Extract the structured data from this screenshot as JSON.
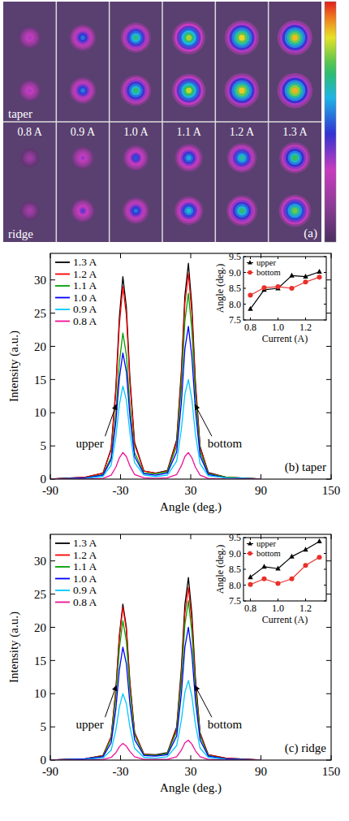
{
  "chart_data": [
    {
      "type": "image_grid",
      "columns": [
        "0.8 A",
        "0.9 A",
        "1.0 A",
        "1.1 A",
        "1.2 A",
        "1.3 A"
      ],
      "panel_label": "(a)",
      "colorbar_range": [
        0,
        1
      ],
      "series": [
        {
          "name": "taper",
          "upper": [
            0.33,
            0.52,
            0.68,
            0.8,
            0.86,
            0.88
          ],
          "bottom": [
            0.33,
            0.53,
            0.7,
            0.82,
            0.87,
            0.89
          ]
        },
        {
          "name": "ridge",
          "upper": [
            0.2,
            0.35,
            0.48,
            0.58,
            0.66,
            0.72
          ],
          "bottom": [
            0.22,
            0.4,
            0.52,
            0.62,
            0.7,
            0.76
          ]
        }
      ]
    },
    {
      "type": "line",
      "panel_label": "(b) taper",
      "x_label": "Angle (deg.)",
      "y_label": "Intensity (a.u.)",
      "annotations": [
        "upper",
        "bottom"
      ],
      "legend": "upper left",
      "xlim": [
        -90,
        150
      ],
      "xticks": [
        -90,
        -30,
        30,
        90,
        150
      ],
      "ylim": [
        0,
        34
      ],
      "yticks": [
        0,
        5,
        10,
        15,
        20,
        25,
        30
      ],
      "x": [
        -90,
        -60,
        -45,
        -38,
        -34,
        -31,
        -28,
        -25,
        -22,
        -18,
        -10,
        0,
        10,
        18,
        22,
        25,
        28,
        31,
        34,
        38,
        45,
        60,
        90
      ],
      "series": [
        {
          "name": "1.3 A",
          "color": "#000000",
          "values": [
            0,
            0.3,
            0.9,
            4.6,
            13.7,
            24.4,
            30.5,
            25.9,
            15.3,
            5.5,
            1.2,
            0.9,
            1.3,
            5.9,
            16.3,
            27.6,
            32.5,
            26.0,
            14.6,
            4.9,
            1.0,
            0.3,
            0
          ]
        },
        {
          "name": "1.2 A",
          "color": "#ff0000",
          "values": [
            0,
            0.3,
            0.9,
            4.4,
            13.1,
            23.2,
            29.0,
            24.7,
            14.5,
            5.2,
            1.2,
            0.9,
            1.2,
            5.6,
            15.5,
            26.4,
            31.0,
            24.8,
            14.0,
            4.7,
            0.9,
            0.3,
            0
          ]
        },
        {
          "name": "1.1 A",
          "color": "#00a000",
          "values": [
            0,
            0.2,
            0.7,
            3.3,
            9.9,
            17.6,
            22.0,
            18.7,
            11.0,
            4.0,
            0.9,
            0.8,
            1.1,
            5.0,
            14.0,
            23.8,
            28.0,
            22.4,
            12.6,
            4.2,
            0.8,
            0.3,
            0
          ]
        },
        {
          "name": "1.0 A",
          "color": "#0000ff",
          "values": [
            0,
            0.2,
            0.6,
            2.9,
            8.6,
            15.2,
            19.0,
            16.2,
            9.5,
            3.4,
            0.8,
            0.6,
            0.9,
            4.1,
            11.5,
            19.6,
            23.0,
            18.4,
            10.4,
            3.5,
            0.7,
            0.2,
            0
          ]
        },
        {
          "name": "0.9 A",
          "color": "#00c8ff",
          "values": [
            0,
            0.1,
            0.4,
            2.1,
            6.3,
            11.2,
            14.0,
            11.9,
            7.0,
            2.5,
            0.6,
            0.4,
            0.6,
            2.7,
            7.5,
            12.8,
            15.0,
            12.0,
            6.8,
            2.3,
            0.5,
            0.2,
            0
          ]
        },
        {
          "name": "0.8 A",
          "color": "#ee1199",
          "values": [
            0,
            0.0,
            0.1,
            0.6,
            1.8,
            3.2,
            4.0,
            3.4,
            2.0,
            0.7,
            0.2,
            0.1,
            0.2,
            0.7,
            2.0,
            3.4,
            4.0,
            3.2,
            1.8,
            0.6,
            0.1,
            0.0,
            0
          ]
        }
      ]
    },
    {
      "type": "line",
      "x_label": "Current (A)",
      "y_label": "Angle (deg.)",
      "legend": "upper left",
      "xlim": [
        0.75,
        1.35
      ],
      "xticks": [
        0.8,
        {
          "value": 1,
          "label": "1.0"
        },
        1.2
      ],
      "ylim": [
        7.5,
        9.5
      ],
      "yticks": [
        7.5,
        {
          "value": 8,
          "label": "8.0"
        },
        8.5,
        {
          "value": 9,
          "label": "9.0"
        },
        9.5
      ],
      "x": [
        0.8,
        0.9,
        1.0,
        1.1,
        1.2,
        1.3
      ],
      "series": [
        {
          "name": "upper",
          "color": "#000000",
          "marker": "triangle",
          "values": [
            7.85,
            8.45,
            8.5,
            8.9,
            8.87,
            9.02
          ]
        },
        {
          "name": "bottom",
          "color": "#e8302a",
          "marker": "circle",
          "values": [
            8.28,
            8.52,
            8.55,
            8.5,
            8.7,
            8.85
          ]
        }
      ]
    },
    {
      "type": "line",
      "panel_label": "(c) ridge",
      "x_label": "Angle (deg.)",
      "y_label": "Intensity (a.u.)",
      "annotations": [
        "upper",
        "bottom"
      ],
      "legend": "upper left",
      "xlim": [
        -90,
        150
      ],
      "xticks": [
        -90,
        -30,
        30,
        90,
        150
      ],
      "ylim": [
        0,
        34
      ],
      "yticks": [
        0,
        5,
        10,
        15,
        20,
        25,
        30
      ],
      "x": [
        -90,
        -60,
        -45,
        -38,
        -34,
        -31,
        -28,
        -25,
        -22,
        -18,
        -10,
        0,
        10,
        18,
        22,
        25,
        28,
        31,
        34,
        38,
        45,
        60,
        90
      ],
      "series": [
        {
          "name": "1.3 A",
          "color": "#000000",
          "values": [
            0,
            0.2,
            0.7,
            3.5,
            10.6,
            18.8,
            23.5,
            20.0,
            11.8,
            4.2,
            0.9,
            0.8,
            1.1,
            5.0,
            13.8,
            23.4,
            27.5,
            22.0,
            12.4,
            4.1,
            0.8,
            0.3,
            0
          ]
        },
        {
          "name": "1.2 A",
          "color": "#ff0000",
          "values": [
            0,
            0.2,
            0.7,
            3.5,
            10.4,
            18.4,
            23.0,
            19.6,
            11.5,
            4.1,
            0.9,
            0.7,
            1.0,
            4.7,
            13.0,
            22.1,
            26.0,
            20.8,
            11.7,
            3.9,
            0.8,
            0.3,
            0
          ]
        },
        {
          "name": "1.1 A",
          "color": "#00a000",
          "values": [
            0,
            0.2,
            0.6,
            3.2,
            9.5,
            16.8,
            21.0,
            17.9,
            10.5,
            3.8,
            0.8,
            0.7,
            1.0,
            4.3,
            12.0,
            20.4,
            24.0,
            19.2,
            10.8,
            3.6,
            0.7,
            0.2,
            0
          ]
        },
        {
          "name": "1.0 A",
          "color": "#0000ff",
          "values": [
            0,
            0.2,
            0.5,
            2.6,
            7.7,
            13.6,
            17.0,
            14.5,
            8.5,
            3.1,
            0.7,
            0.6,
            0.8,
            3.6,
            10.0,
            17.0,
            20.0,
            16.0,
            9.0,
            3.0,
            0.6,
            0.2,
            0
          ]
        },
        {
          "name": "0.9 A",
          "color": "#00c8ff",
          "values": [
            0,
            0.1,
            0.3,
            1.5,
            4.5,
            8.0,
            10.0,
            8.5,
            5.0,
            1.8,
            0.4,
            0.3,
            0.5,
            2.2,
            6.0,
            10.2,
            12.0,
            9.6,
            5.4,
            1.8,
            0.4,
            0.1,
            0
          ]
        },
        {
          "name": "0.8 A",
          "color": "#ee1199",
          "values": [
            0,
            0.0,
            0.1,
            0.4,
            1.1,
            2.0,
            2.5,
            2.1,
            1.3,
            0.5,
            0.1,
            0.1,
            0.1,
            0.5,
            1.5,
            2.6,
            3.0,
            2.4,
            1.4,
            0.5,
            0.1,
            0.0,
            0
          ]
        }
      ]
    },
    {
      "type": "line",
      "x_label": "Current (A)",
      "y_label": "Angle (deg.)",
      "legend": "upper left",
      "xlim": [
        0.75,
        1.35
      ],
      "xticks": [
        0.8,
        {
          "value": 1,
          "label": "1.0"
        },
        1.2
      ],
      "ylim": [
        7.5,
        9.5
      ],
      "yticks": [
        7.5,
        {
          "value": 8,
          "label": "8.0"
        },
        8.5,
        {
          "value": 9,
          "label": "9.0"
        },
        9.5
      ],
      "x": [
        0.8,
        0.9,
        1.0,
        1.1,
        1.2,
        1.3
      ],
      "series": [
        {
          "name": "upper",
          "color": "#000000",
          "marker": "triangle",
          "values": [
            8.25,
            8.58,
            8.52,
            8.9,
            9.12,
            9.38
          ]
        },
        {
          "name": "bottom",
          "color": "#e8302a",
          "marker": "circle",
          "values": [
            8.02,
            8.2,
            8.05,
            8.2,
            8.62,
            8.88
          ]
        }
      ]
    }
  ]
}
